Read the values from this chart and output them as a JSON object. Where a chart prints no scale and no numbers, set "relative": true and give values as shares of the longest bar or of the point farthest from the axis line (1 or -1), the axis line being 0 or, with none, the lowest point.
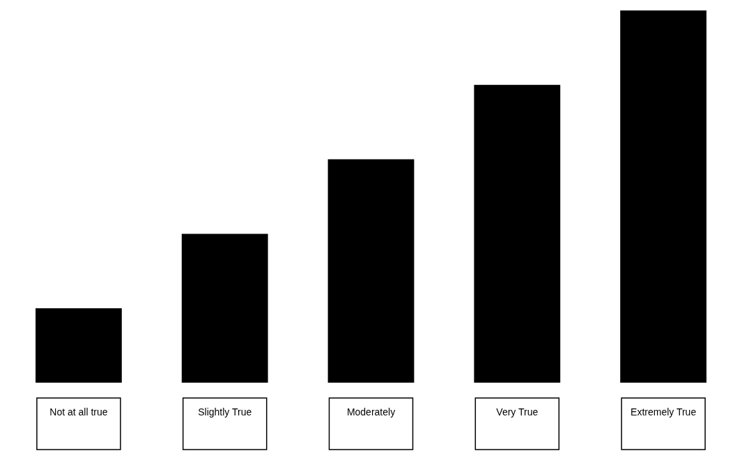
{
  "chart_data": {
    "type": "bar",
    "relative": true,
    "categories": [
      "Not at all true",
      "Slightly True",
      "Moderately",
      "Very True",
      "Extremely True"
    ],
    "values": [
      0.2,
      0.4,
      0.6,
      0.8,
      1
    ],
    "color": "#000000"
  }
}
